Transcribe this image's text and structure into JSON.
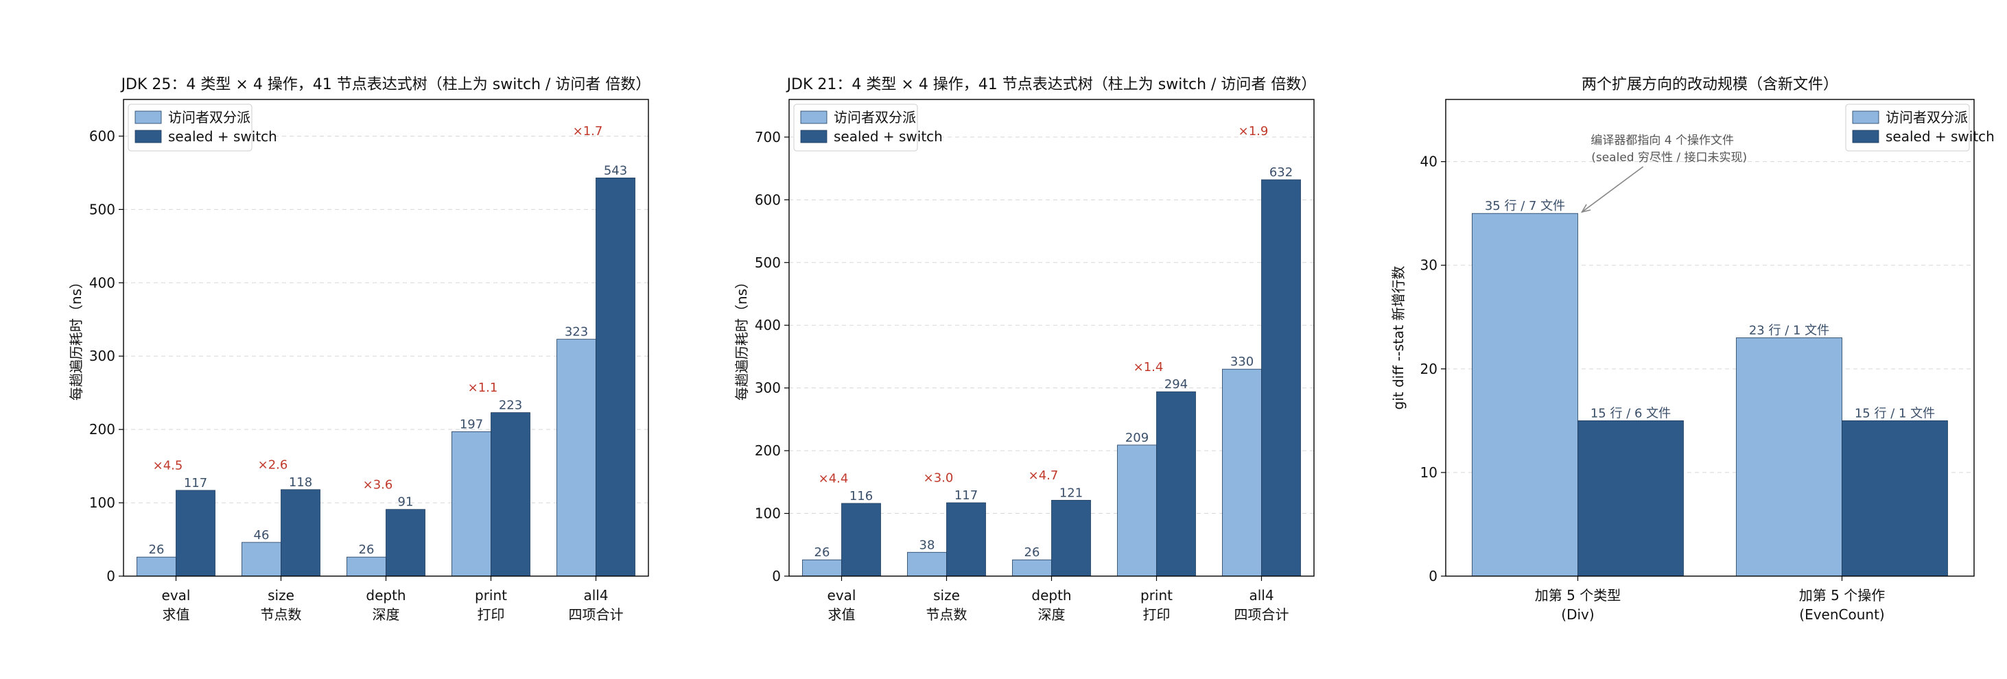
{
  "colors": {
    "dispatch": "#8fb6df",
    "switch": "#2e5a8a",
    "ratio": "#c0392b"
  },
  "chart_data": [
    {
      "type": "bar",
      "title": "JDK 25：4 类型 × 4 操作，41 节点表达式树（柱上为 switch / 访问者 倍数）",
      "xlabel": "",
      "ylabel": "每趟遍历耗时（ns）",
      "ylim": [
        0,
        650
      ],
      "yticks": [
        0,
        100,
        200,
        300,
        400,
        500,
        600
      ],
      "grid": true,
      "legend_position": "top-left",
      "categories": [
        [
          "eval",
          "求值"
        ],
        [
          "size",
          "节点数"
        ],
        [
          "depth",
          "深度"
        ],
        [
          "print",
          "打印"
        ],
        [
          "all4",
          "四项合计"
        ]
      ],
      "series": [
        {
          "name": "访问者双分派",
          "values": [
            26,
            46,
            26,
            197,
            323
          ]
        },
        {
          "name": "sealed + switch",
          "values": [
            117,
            118,
            91,
            223,
            543
          ]
        }
      ],
      "ratio_labels": [
        "×4.5",
        "×2.6",
        "×3.6",
        "×1.1",
        "×1.7"
      ]
    },
    {
      "type": "bar",
      "title": "JDK 21：4 类型 × 4 操作，41 节点表达式树（柱上为 switch / 访问者 倍数）",
      "xlabel": "",
      "ylabel": "每趟遍历耗时（ns）",
      "ylim": [
        0,
        760
      ],
      "yticks": [
        0,
        100,
        200,
        300,
        400,
        500,
        600,
        700
      ],
      "grid": true,
      "legend_position": "top-left",
      "categories": [
        [
          "eval",
          "求值"
        ],
        [
          "size",
          "节点数"
        ],
        [
          "depth",
          "深度"
        ],
        [
          "print",
          "打印"
        ],
        [
          "all4",
          "四项合计"
        ]
      ],
      "series": [
        {
          "name": "访问者双分派",
          "values": [
            26,
            38,
            26,
            209,
            330
          ]
        },
        {
          "name": "sealed + switch",
          "values": [
            116,
            117,
            121,
            294,
            632
          ]
        }
      ],
      "ratio_labels": [
        "×4.4",
        "×3.0",
        "×4.7",
        "×1.4",
        "×1.9"
      ]
    },
    {
      "type": "bar",
      "title": "两个扩展方向的改动规模（含新文件）",
      "xlabel": "",
      "ylabel": "git diff --stat 新增行数",
      "ylim": [
        0,
        46
      ],
      "yticks": [
        0,
        10,
        20,
        30,
        40
      ],
      "grid": true,
      "legend_position": "top-right",
      "categories": [
        [
          "加第 5 个类型",
          "(Div)"
        ],
        [
          "加第 5 个操作",
          "(EvenCount)"
        ]
      ],
      "series": [
        {
          "name": "访问者双分派",
          "values": [
            35,
            23
          ],
          "labels": [
            "35 行 / 7 文件",
            "23 行 / 1 文件"
          ]
        },
        {
          "name": "sealed + switch",
          "values": [
            15,
            15
          ],
          "labels": [
            "15 行 / 6 文件",
            "15 行 / 1 文件"
          ]
        }
      ],
      "annotation": [
        "编译器都指向 4 个操作文件",
        "(sealed 穷尽性 / 接口未实现)"
      ]
    }
  ]
}
